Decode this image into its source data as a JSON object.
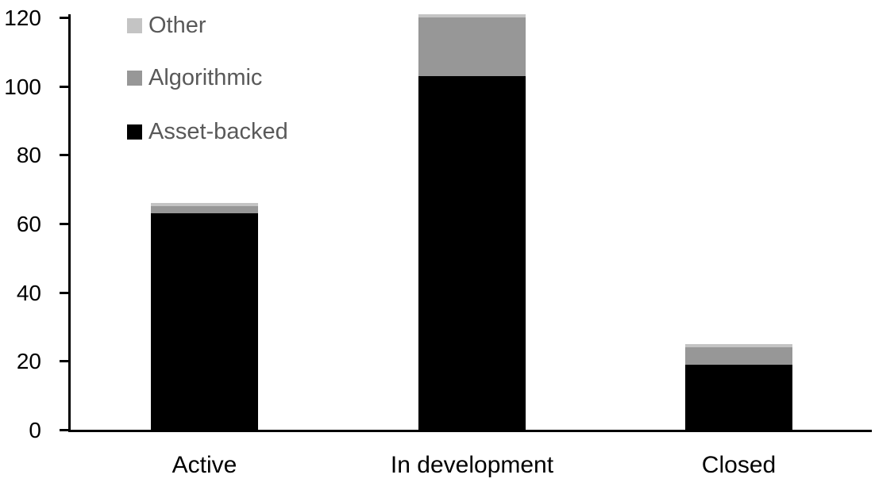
{
  "chart_data": {
    "type": "bar",
    "stacked": true,
    "title": "",
    "xlabel": "",
    "ylabel": "",
    "categories": [
      "Active",
      "In development",
      "Closed"
    ],
    "series": [
      {
        "name": "Asset-backed",
        "color": "#000000",
        "values": [
          63,
          103,
          19
        ]
      },
      {
        "name": "Algorithmic",
        "color": "#979797",
        "values": [
          2,
          17,
          5
        ]
      },
      {
        "name": "Other",
        "color": "#c4c4c4",
        "values": [
          1,
          1,
          1
        ]
      }
    ],
    "stack_totals": [
      66,
      121,
      25
    ],
    "ylim": [
      0,
      120
    ],
    "yticks": [
      "0",
      "20",
      "40",
      "60",
      "80",
      "100",
      "120"
    ],
    "ytick_values": [
      0,
      20,
      40,
      60,
      80,
      100,
      120
    ],
    "grid": false,
    "legend": {
      "position": "top-left",
      "text_color": "#595959",
      "entries": [
        {
          "label": "Other",
          "color": "#c4c4c4"
        },
        {
          "label": "Algorithmic",
          "color": "#979797"
        },
        {
          "label": "Asset-backed",
          "color": "#000000"
        }
      ]
    },
    "axis_color": "#000000"
  }
}
